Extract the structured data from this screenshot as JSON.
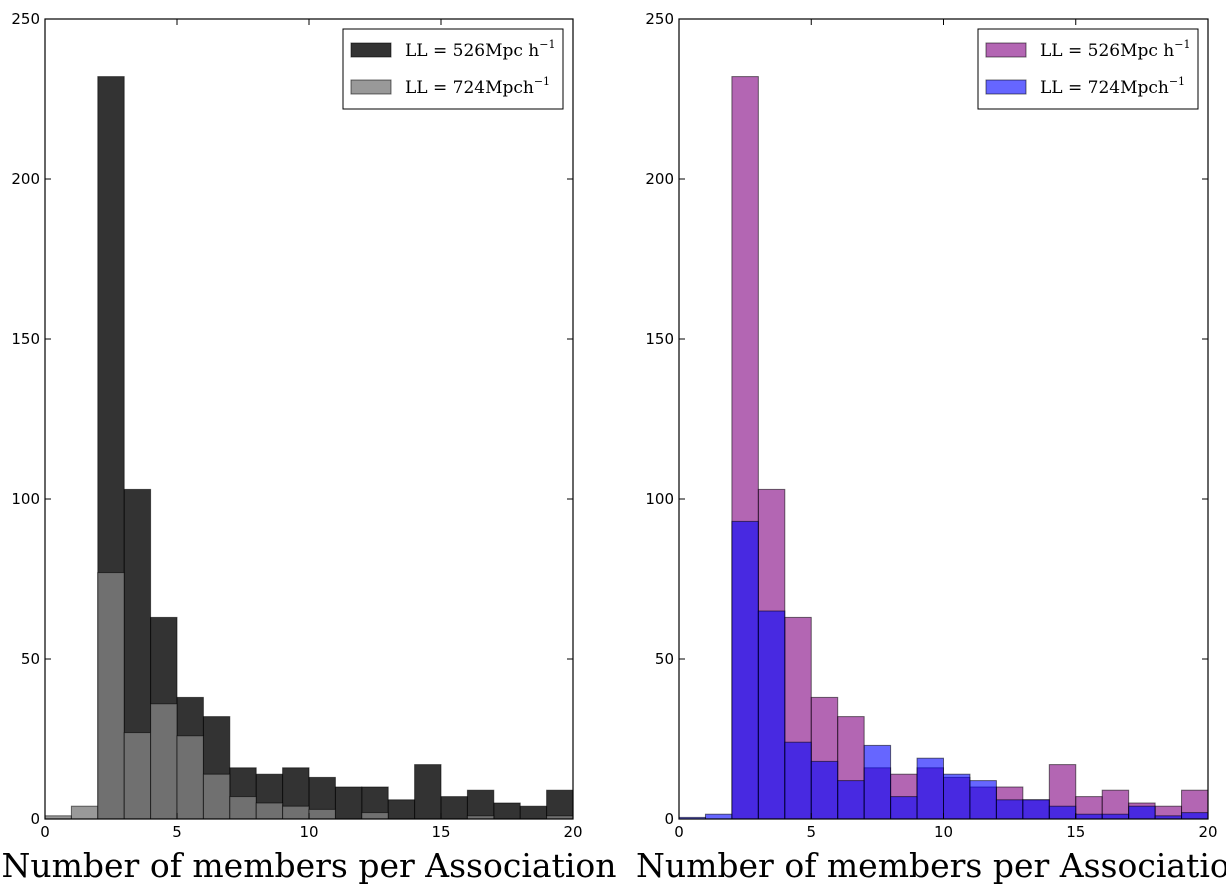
{
  "chart_data": [
    {
      "type": "bar",
      "histogram": true,
      "xlabel": "Number of members per Association",
      "ylabel": "",
      "xlim": [
        0,
        20
      ],
      "ylim": [
        0,
        250
      ],
      "x_ticks": [
        "0",
        "5",
        "10",
        "15",
        "20"
      ],
      "y_ticks": [
        "0",
        "50",
        "100",
        "150",
        "200",
        "250"
      ],
      "grid": false,
      "legend_position": "top-right",
      "bin_edges": [
        0,
        1,
        2,
        3,
        4,
        5,
        6,
        7,
        8,
        9,
        10,
        11,
        12,
        13,
        14,
        15,
        16,
        17,
        18,
        19,
        20
      ],
      "series": [
        {
          "name": "LL = 526Mpc h",
          "name_sup": "−1",
          "color": "#000000",
          "opacity": 0.8,
          "values": [
            0,
            0,
            232,
            103,
            63,
            38,
            32,
            16,
            14,
            16,
            13,
            10,
            10,
            6,
            17,
            7,
            9,
            5,
            4,
            9
          ]
        },
        {
          "name": "LL = 724Mpch",
          "name_sup": "−1",
          "color": "#808080",
          "opacity": 0.8,
          "values": [
            1,
            4,
            77,
            27,
            36,
            26,
            14,
            7,
            5,
            4,
            3,
            0,
            2,
            0,
            0,
            0,
            1,
            0,
            0,
            1
          ]
        }
      ]
    },
    {
      "type": "bar",
      "histogram": true,
      "xlabel": "Number of members per Association",
      "ylabel": "",
      "xlim": [
        0,
        20
      ],
      "ylim": [
        0,
        250
      ],
      "x_ticks": [
        "0",
        "5",
        "10",
        "15",
        "20"
      ],
      "y_ticks": [
        "0",
        "50",
        "100",
        "150",
        "200",
        "250"
      ],
      "grid": false,
      "legend_position": "top-right",
      "bin_edges": [
        0,
        1,
        2,
        3,
        4,
        5,
        6,
        7,
        8,
        9,
        10,
        11,
        12,
        13,
        14,
        15,
        16,
        17,
        18,
        19,
        20
      ],
      "series": [
        {
          "name": "LL = 526Mpc h",
          "name_sup": "−1",
          "color": "#800080",
          "opacity": 0.6,
          "values": [
            0,
            0,
            232,
            103,
            63,
            38,
            32,
            16,
            14,
            16,
            13,
            10,
            10,
            6,
            17,
            7,
            9,
            5,
            4,
            9
          ]
        },
        {
          "name": "LL = 724Mpch",
          "name_sup": "−1",
          "color": "#0000ff",
          "opacity": 0.6,
          "values": [
            0.5,
            1.5,
            93,
            65,
            24,
            18,
            12,
            23,
            7,
            19,
            14,
            12,
            6,
            6,
            4,
            1.5,
            1.5,
            4,
            1,
            2
          ]
        }
      ]
    }
  ]
}
